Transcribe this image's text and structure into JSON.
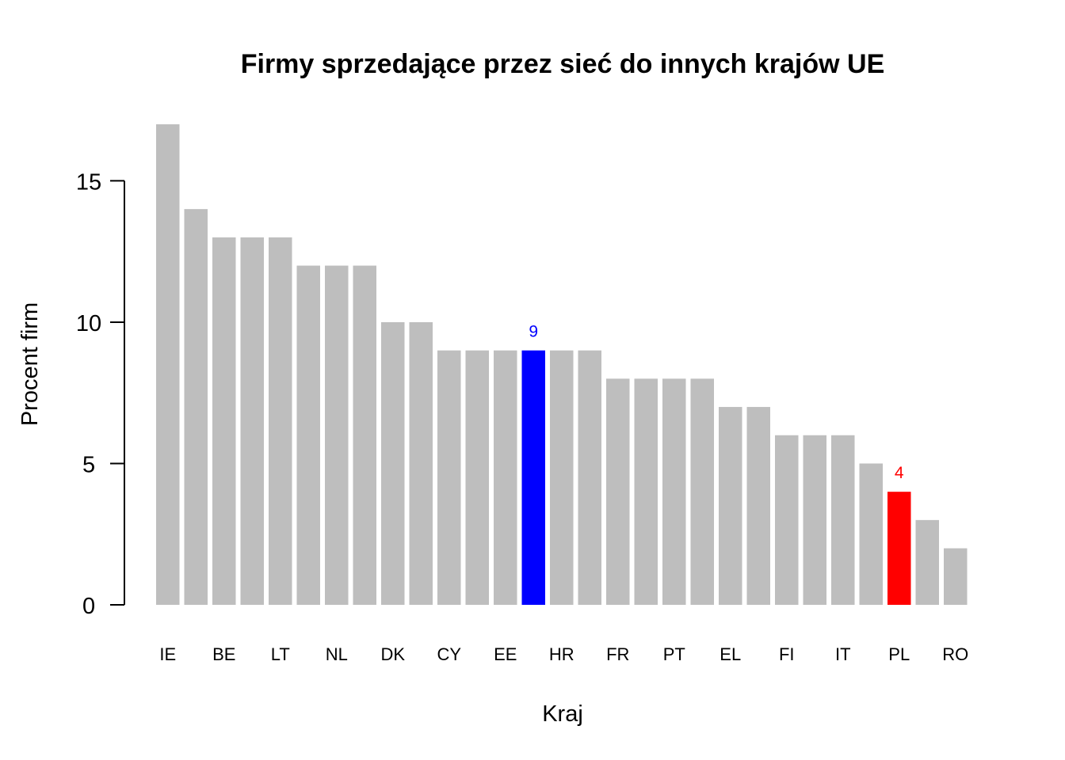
{
  "chart_data": {
    "type": "bar",
    "title": "Firmy sprzedające przez sieć do innych krajów UE",
    "xlabel": "Kraj",
    "ylabel": "Procent firm",
    "ylim": [
      0,
      17
    ],
    "yticks": [
      0,
      5,
      10,
      15
    ],
    "grid": false,
    "legend": "none",
    "categories": [
      "IE",
      "",
      "BE",
      "",
      "LT",
      "",
      "NL",
      "",
      "DK",
      "",
      "CY",
      "",
      "EE",
      "",
      "HR",
      "",
      "FR",
      "",
      "PT",
      "",
      "EL",
      "",
      "FI",
      "",
      "IT",
      "",
      "PL",
      "",
      "RO"
    ],
    "values": [
      17,
      14,
      13,
      13,
      13,
      12,
      12,
      12,
      10,
      10,
      9,
      9,
      9,
      9,
      9,
      9,
      8,
      8,
      8,
      8,
      7,
      7,
      6,
      6,
      6,
      5,
      4,
      3,
      2
    ],
    "highlighted": [
      {
        "index": 13,
        "label": "9",
        "color": "#0000ff"
      },
      {
        "index": 26,
        "label": "4",
        "color": "#ff0000"
      }
    ],
    "default_color": "#bebebe"
  }
}
